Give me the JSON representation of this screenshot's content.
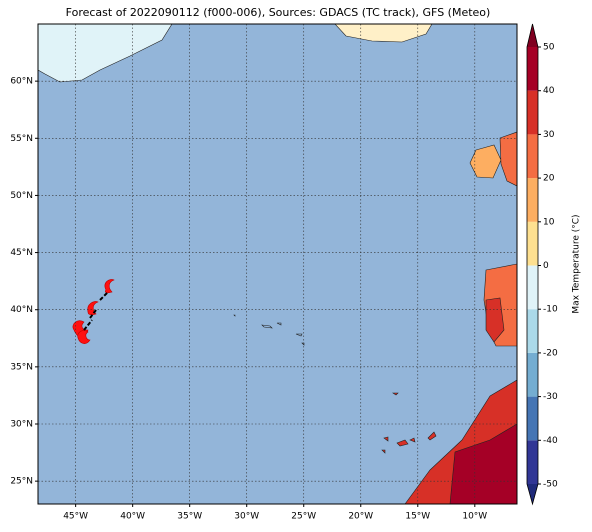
{
  "title": "Forecast of 2022090112 (f000-006), Sources: GDACS (TC track), GFS (Meteo)",
  "map": {
    "xlim": [
      -48.3,
      -6.3
    ],
    "ylim": [
      23,
      65
    ],
    "lon_ticks": [
      {
        "value": -45,
        "label": "45°W"
      },
      {
        "value": -40,
        "label": "40°W"
      },
      {
        "value": -35,
        "label": "35°W"
      },
      {
        "value": -30,
        "label": "30°W"
      },
      {
        "value": -25,
        "label": "25°W"
      },
      {
        "value": -20,
        "label": "20°W"
      },
      {
        "value": -15,
        "label": "15°W"
      },
      {
        "value": -10,
        "label": "10°W"
      }
    ],
    "lat_ticks": [
      {
        "value": 25,
        "label": "25°N"
      },
      {
        "value": 30,
        "label": "30°N"
      },
      {
        "value": 35,
        "label": "35°N"
      },
      {
        "value": 40,
        "label": "40°N"
      },
      {
        "value": 45,
        "label": "45°N"
      },
      {
        "value": 50,
        "label": "50°N"
      },
      {
        "value": 55,
        "label": "55°N"
      },
      {
        "value": 60,
        "label": "60°N"
      }
    ],
    "ocean_color": "#93b5d9"
  },
  "colorbar": {
    "label": "Max Temperature (°C)",
    "lim": [
      -50,
      50
    ],
    "ticks": [
      -50,
      -40,
      -30,
      -20,
      -10,
      0,
      10,
      20,
      30,
      40,
      50
    ],
    "colors": [
      "#313695",
      "#4575b4",
      "#74add1",
      "#abd9e9",
      "#e0f3f8",
      "#fee090",
      "#fdae61",
      "#f46d43",
      "#d73027",
      "#a50026"
    ],
    "under_color": "#1f2a7a",
    "over_color": "#7f0020"
  }
}
